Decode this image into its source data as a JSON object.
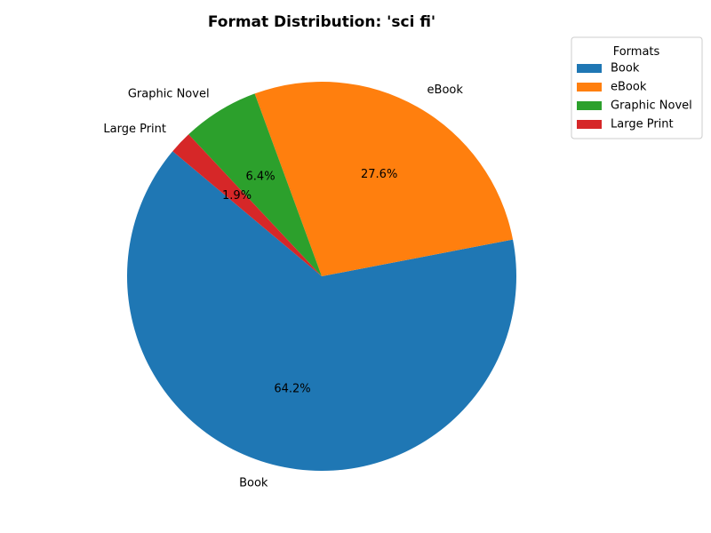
{
  "chart_data": {
    "type": "pie",
    "title": "Format Distribution: 'sci fi'",
    "categories": [
      "Book",
      "eBook",
      "Graphic Novel",
      "Large Print"
    ],
    "values": [
      64.2,
      27.6,
      6.4,
      1.9
    ],
    "value_labels": [
      "64.2%",
      "27.6%",
      "6.4%",
      "1.9%"
    ],
    "colors": [
      "#1f77b4",
      "#ff7f0e",
      "#2ca02c",
      "#d62728"
    ],
    "start_angle_deg": 140,
    "direction": "counterclockwise",
    "legend": {
      "title": "Formats",
      "placement": "top-right, outside"
    }
  }
}
